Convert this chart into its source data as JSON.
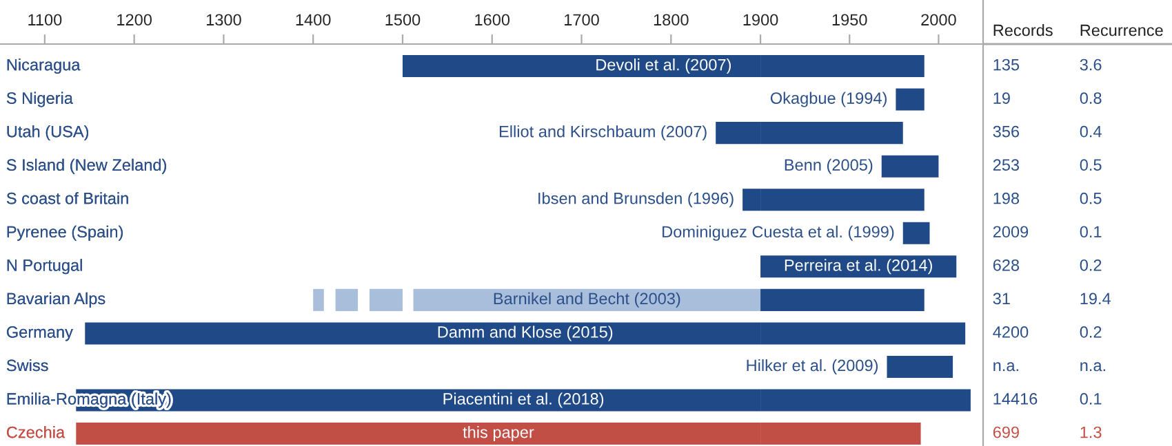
{
  "chart_data": [
    {
      "type": "bar",
      "orientation": "horizontal",
      "categories": [
        "Nicaragua",
        "S Nigeria",
        "Utah (USA)",
        "S Island (New Zeland)",
        "S coast of Britain",
        "Pyrenee (Spain)",
        "N Portugal",
        "Bavarian Alps",
        "Germany",
        "Swiss",
        "Emilia-Romagna (Italy)",
        "Czechia"
      ],
      "series": [
        {
          "color": "#1f4a87",
          "colors": [
            null,
            null,
            null,
            null,
            null,
            null,
            null,
            null,
            null,
            null,
            null,
            "#c24f45"
          ],
          "base": [
            1500,
            null,
            1850,
            null,
            1880,
            null,
            null,
            null,
            1145,
            null,
            1135,
            1135
          ],
          "values": [
            400,
            null,
            50,
            null,
            20,
            null,
            null,
            null,
            755,
            null,
            765,
            765
          ]
        },
        {
          "color": "#a9bedb",
          "base": [
            null,
            null,
            null,
            null,
            null,
            null,
            null,
            1400,
            null,
            null,
            null,
            null
          ],
          "values": [
            null,
            null,
            null,
            null,
            null,
            null,
            null,
            12,
            null,
            null,
            null,
            null
          ]
        },
        {
          "color": "#a9bedb",
          "base": [
            null,
            null,
            null,
            null,
            null,
            null,
            null,
            1425,
            null,
            null,
            null,
            null
          ],
          "values": [
            null,
            null,
            null,
            null,
            null,
            null,
            null,
            25,
            null,
            null,
            null,
            null
          ]
        },
        {
          "color": "#a9bedb",
          "base": [
            null,
            null,
            null,
            null,
            null,
            null,
            null,
            1463,
            null,
            null,
            null,
            null
          ],
          "values": [
            null,
            null,
            null,
            null,
            null,
            null,
            null,
            37,
            null,
            null,
            null,
            null
          ]
        },
        {
          "color": "#a9bedb",
          "base": [
            null,
            null,
            null,
            null,
            null,
            null,
            null,
            1512,
            null,
            null,
            null,
            null
          ],
          "values": [
            null,
            null,
            null,
            null,
            null,
            null,
            null,
            388,
            null,
            null,
            null,
            null
          ]
        }
      ],
      "xlim": [
        1050,
        1900
      ],
      "xticks": [
        1100,
        1200,
        1300,
        1400,
        1500,
        1600,
        1700,
        1800,
        1900
      ],
      "annotations": [
        {
          "text": "Elliot and Kirschbaum (2007)",
          "x": 1850,
          "y": "Utah (USA)"
        },
        {
          "text": "Ibsen and Brunsden (1996)",
          "x": 1880,
          "y": "S coast of Britain"
        },
        "Devoli et al. (2007)",
        "Barnikel and Becht (2003)",
        "Damm and Klose (2015)",
        "Piacentini et al. (2018)",
        "this paper"
      ],
      "grid": false,
      "legend": false
    },
    {
      "type": "bar",
      "orientation": "horizontal",
      "categories": [
        "Nicaragua",
        "S Nigeria",
        "Utah (USA)",
        "S Island (New Zeland)",
        "S coast of Britain",
        "Pyrenee (Spain)",
        "N Portugal",
        "Bavarian Alps",
        "Germany",
        "Swiss",
        "Emilia-Romagna (Italy)",
        "Czechia"
      ],
      "series": [
        {
          "color": "#1f4a87",
          "colors": [
            null,
            null,
            null,
            null,
            null,
            null,
            null,
            null,
            null,
            null,
            null,
            "#c24f45"
          ],
          "base": [
            1900,
            1976,
            1900,
            1968,
            1900,
            1980,
            1900,
            1900,
            1900,
            1971,
            1900,
            1900
          ],
          "values": [
            92,
            16,
            80,
            32,
            92,
            15,
            110,
            92,
            115,
            37,
            118,
            90
          ]
        }
      ],
      "xlim": [
        1900,
        2025
      ],
      "xticks": [
        1950,
        2000
      ],
      "tick_labels": "x",
      "annotations": [
        {
          "text": "Okagbue (1994)",
          "x": 1976,
          "y": "S Nigeria"
        },
        {
          "text": "Benn (2005)",
          "x": 1968,
          "y": "S Island (New Zeland)"
        },
        {
          "text": "Dominiguez Cuesta et al. (1999)",
          "x": 1980,
          "y": "Pyrenee (Spain)"
        },
        {
          "text": "Perreira et al. (2014)",
          "x": 2010,
          "y": "N Portugal"
        },
        {
          "text": "Hilker et al. (2009)",
          "x": 1971,
          "y": "Swiss"
        }
      ],
      "grid": false,
      "legend": false
    },
    {
      "type": "other",
      "annotations": [
        "Records",
        "Recurrence",
        "135",
        "3.6",
        "19",
        "0.8",
        "356",
        "0.4",
        "253",
        "0.5",
        "198",
        "0.5",
        "2009",
        "0.1",
        "628",
        "0.2",
        "31",
        "19.4",
        "4200",
        "0.2",
        "n.a.",
        "n.a.",
        "14416",
        "0.1",
        "699",
        "1.3"
      ],
      "colors": [
        "#222222",
        "#222222",
        "#2b4f8a",
        "#2b4f8a",
        "#2b4f8a",
        "#2b4f8a",
        "#2b4f8a",
        "#2b4f8a",
        "#2b4f8a",
        "#2b4f8a",
        "#2b4f8a",
        "#2b4f8a",
        "#2b4f8a",
        "#2b4f8a",
        "#2b4f8a",
        "#2b4f8a",
        "#2b4f8a",
        "#2b4f8a",
        "#2b4f8a",
        "#2b4f8a",
        "#2b4f8a",
        "#2b4f8a",
        "#2b4f8a",
        "#2b4f8a",
        "#c24f45",
        "#c24f45"
      ]
    }
  ]
}
